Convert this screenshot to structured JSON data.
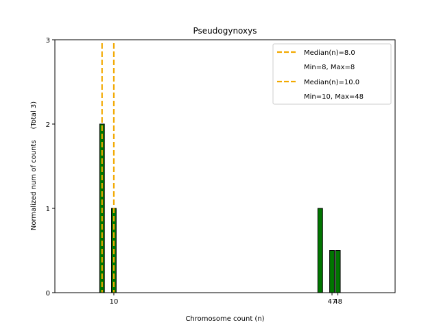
{
  "chart_data": {
    "type": "bar",
    "title": "Pseudogynoxys",
    "xlabel": "Chromosome count (n)",
    "ylabel": "Normalized num of counts     (Total 3)",
    "xlim": [
      0,
      57.7
    ],
    "ylim": [
      0,
      3
    ],
    "x_ticks": [
      10,
      47,
      48
    ],
    "x_tick_labels": [
      "10",
      "47",
      "48"
    ],
    "y_ticks": [
      0,
      1,
      2,
      3
    ],
    "y_tick_labels": [
      "0",
      "1",
      "2",
      "3"
    ],
    "bar_width": 0.8,
    "bars": [
      {
        "x": 8,
        "value": 2
      },
      {
        "x": 10,
        "value": 1
      },
      {
        "x": 45,
        "value": 1
      },
      {
        "x": 47,
        "value": 0.5
      },
      {
        "x": 48,
        "value": 0.5
      }
    ],
    "median_lines": [
      {
        "x": 8,
        "label": "Median(n)=8.0",
        "sublabel": "Min=8, Max=8"
      },
      {
        "x": 10,
        "label": "Median(n)=10.0",
        "sublabel": "Min=10, Max=48"
      }
    ],
    "legend_position": "top-right",
    "grid": false,
    "colors": {
      "bar_fill": "#007500",
      "bar_edge": "#000000",
      "median": "#f2a900"
    }
  }
}
